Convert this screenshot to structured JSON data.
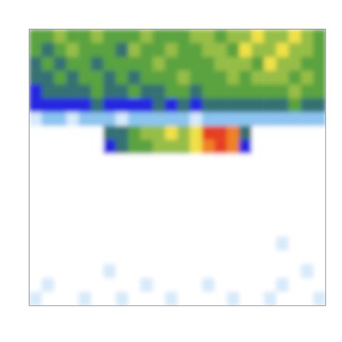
{
  "chart_data": {
    "type": "heatmap",
    "tick_labels": false,
    "zlim": [
      0,
      10
    ],
    "cells": [
      [
        5,
        5,
        6,
        5,
        5,
        6,
        5,
        5,
        5,
        6,
        5,
        5,
        5,
        6,
        6,
        5,
        6,
        6,
        7,
        6,
        6,
        7,
        6,
        5
      ],
      [
        5,
        4,
        5,
        6,
        5,
        5,
        5,
        4,
        6,
        5,
        5,
        6,
        5,
        5,
        6,
        6,
        5,
        7,
        6,
        6,
        7,
        6,
        6,
        5
      ],
      [
        4,
        5,
        4,
        5,
        5,
        4,
        5,
        5,
        5,
        5,
        6,
        5,
        5,
        5,
        5,
        6,
        6,
        6,
        5,
        7,
        6,
        6,
        5,
        5
      ],
      [
        4,
        4,
        5,
        4,
        5,
        5,
        4,
        5,
        4,
        5,
        5,
        5,
        6,
        5,
        5,
        5,
        6,
        5,
        6,
        6,
        6,
        5,
        6,
        5
      ],
      [
        3,
        4,
        4,
        4,
        4,
        5,
        4,
        4,
        5,
        4,
        4,
        5,
        5,
        4,
        5,
        5,
        5,
        5,
        5,
        5,
        5,
        6,
        5,
        5
      ],
      [
        3,
        3,
        3,
        3,
        3,
        4,
        3,
        3,
        3,
        3,
        4,
        3,
        4,
        3,
        4,
        4,
        4,
        4,
        4,
        4,
        4,
        5,
        4,
        4
      ],
      [
        1,
        2,
        2,
        1,
        2,
        2,
        2,
        1,
        2,
        2,
        2,
        2,
        2,
        1,
        2,
        2,
        2,
        2,
        2,
        2,
        2,
        2,
        2,
        2
      ],
      [
        0,
        0,
        0,
        0,
        0,
        0,
        4,
        4,
        5,
        6,
        6,
        7,
        6,
        7,
        9,
        9,
        8,
        4,
        0,
        0,
        0,
        0,
        0,
        0
      ],
      [
        0,
        0,
        0,
        0,
        0,
        0,
        3,
        4,
        5,
        5,
        6,
        6,
        6,
        7,
        8,
        9,
        8,
        3,
        0,
        0,
        0,
        0,
        0,
        0
      ],
      [
        0,
        0,
        0,
        0,
        0,
        0,
        0,
        0,
        0,
        0,
        0,
        0,
        0,
        0,
        0,
        0,
        0,
        0,
        0,
        0,
        0,
        0,
        0,
        0
      ],
      [
        0,
        0,
        0,
        0,
        0,
        0,
        0,
        0,
        0,
        0,
        0,
        0,
        0,
        0,
        0,
        0,
        0,
        0,
        0,
        0,
        0,
        0,
        0,
        0
      ],
      [
        0,
        0,
        0,
        0,
        0,
        0,
        0,
        0,
        0,
        0,
        0,
        0,
        0,
        0,
        0,
        0,
        0,
        0,
        0,
        0,
        0,
        0,
        0,
        0
      ],
      [
        0,
        0,
        0,
        0,
        0,
        0,
        0,
        0,
        0,
        0,
        0,
        0,
        0,
        0,
        0,
        0,
        0,
        0,
        0,
        0,
        0,
        0,
        0,
        0
      ],
      [
        0,
        0,
        0,
        0,
        0,
        0,
        0,
        0,
        0,
        0,
        0,
        0,
        0,
        0,
        0,
        0,
        0,
        0,
        0,
        0,
        0,
        0,
        0,
        0
      ],
      [
        0,
        0,
        0,
        0,
        0,
        0,
        0,
        0,
        0,
        0,
        0,
        0,
        0,
        0,
        0,
        0,
        0,
        0,
        0,
        0,
        0,
        0,
        0,
        0
      ],
      [
        0,
        0,
        0,
        0,
        0,
        0,
        0,
        0,
        0,
        0,
        0,
        0,
        0,
        0,
        0,
        0,
        0,
        0,
        0,
        0,
        1,
        0,
        0,
        0
      ],
      [
        0,
        0,
        0,
        0,
        0,
        0,
        0,
        0,
        0,
        0,
        0,
        0,
        0,
        0,
        0,
        0,
        0,
        0,
        0,
        0,
        0,
        0,
        0,
        0
      ],
      [
        0,
        0,
        0,
        0,
        0,
        0,
        1,
        0,
        0,
        0,
        0,
        0,
        0,
        0,
        0,
        0,
        0,
        0,
        0,
        0,
        0,
        0,
        1,
        0
      ],
      [
        0,
        1,
        0,
        0,
        0,
        0,
        0,
        0,
        0,
        1,
        0,
        0,
        0,
        0,
        1,
        0,
        0,
        0,
        0,
        0,
        1,
        0,
        0,
        0
      ],
      [
        1,
        0,
        0,
        0,
        1,
        0,
        0,
        1,
        0,
        0,
        0,
        1,
        0,
        0,
        0,
        0,
        1,
        0,
        0,
        1,
        0,
        0,
        0,
        1
      ]
    ]
  }
}
